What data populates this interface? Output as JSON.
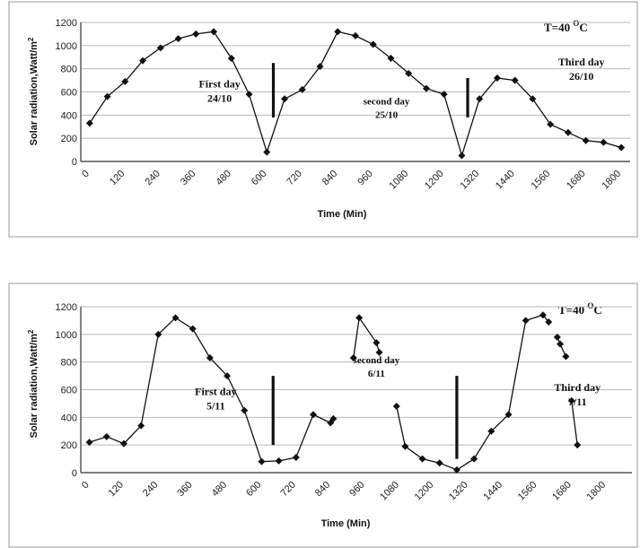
{
  "chart_data": [
    {
      "type": "line",
      "title": "T=40 °C",
      "title_main": "T=40 ",
      "title_sup": "O",
      "title_unit": "C",
      "xlabel": "Time (Min)",
      "ylabel": "Solar radiation,Watt/m",
      "ylabel_sup": "2",
      "ylim": [
        0,
        1200
      ],
      "xlim": [
        -30,
        1830
      ],
      "yticks": [
        0,
        200,
        400,
        600,
        800,
        1000,
        1200
      ],
      "xticks": [
        0,
        120,
        240,
        360,
        480,
        600,
        720,
        840,
        960,
        1080,
        1200,
        1320,
        1440,
        1560,
        1680,
        1800
      ],
      "grid": true,
      "series": [
        {
          "segments": [
            [
              [
                0,
                330
              ],
              [
                60,
                560
              ],
              [
                120,
                690
              ],
              [
                180,
                870
              ],
              [
                240,
                980
              ],
              [
                300,
                1060
              ],
              [
                360,
                1100
              ],
              [
                420,
                1120
              ],
              [
                480,
                890
              ],
              [
                540,
                580
              ],
              [
                600,
                80
              ],
              [
                660,
                540
              ],
              [
                720,
                620
              ],
              [
                780,
                820
              ],
              [
                840,
                1120
              ],
              [
                900,
                1085
              ],
              [
                960,
                1010
              ],
              [
                1020,
                890
              ],
              [
                1080,
                760
              ],
              [
                1140,
                630
              ],
              [
                1200,
                580
              ],
              [
                1260,
                50
              ],
              [
                1320,
                540
              ],
              [
                1380,
                720
              ],
              [
                1440,
                700
              ],
              [
                1500,
                540
              ],
              [
                1560,
                320
              ],
              [
                1620,
                250
              ],
              [
                1680,
                180
              ],
              [
                1740,
                165
              ],
              [
                1800,
                120
              ]
            ]
          ]
        }
      ],
      "dividers": [
        {
          "x": 622,
          "y_from": 380,
          "y_to": 850
        },
        {
          "x": 1280,
          "y_from": 380,
          "y_to": 720
        }
      ],
      "annotations": [
        {
          "lines": [
            "First day",
            "24/10"
          ],
          "x": 440,
          "y": 640,
          "size": 12
        },
        {
          "lines": [
            "second day",
            "25/10"
          ],
          "x": 1005,
          "y": 490,
          "size": 11
        },
        {
          "lines": [
            "Third day",
            "26/10"
          ],
          "x": 1665,
          "y": 830,
          "size": 12
        }
      ]
    },
    {
      "type": "line",
      "title": "T=40 °C",
      "title_main": "T=40 ",
      "title_sup": "O",
      "title_unit": "C",
      "xlabel": "Time (Min)",
      "ylabel": "Solar radiation,Watt/m",
      "ylabel_sup": "2",
      "ylim": [
        0,
        1200
      ],
      "xlim": [
        -30,
        1890
      ],
      "yticks": [
        0,
        200,
        400,
        600,
        800,
        1000,
        1200
      ],
      "xticks": [
        0,
        120,
        240,
        360,
        480,
        600,
        720,
        840,
        960,
        1080,
        1200,
        1320,
        1440,
        1560,
        1680,
        1800
      ],
      "grid": true,
      "series": [
        {
          "segments": [
            [
              [
                0,
                220
              ],
              [
                60,
                260
              ],
              [
                120,
                210
              ],
              [
                180,
                340
              ],
              [
                240,
                1000
              ],
              [
                300,
                1120
              ],
              [
                360,
                1040
              ],
              [
                420,
                830
              ],
              [
                480,
                700
              ],
              [
                540,
                450
              ],
              [
                600,
                80
              ],
              [
                660,
                85
              ],
              [
                720,
                110
              ],
              [
                780,
                420
              ],
              [
                840,
                360
              ],
              [
                850,
                390
              ]
            ],
            [
              [
                920,
                830
              ],
              [
                940,
                1120
              ],
              [
                1000,
                940
              ],
              [
                1010,
                870
              ]
            ],
            [
              [
                1070,
                480
              ],
              [
                1100,
                190
              ],
              [
                1160,
                100
              ],
              [
                1220,
                70
              ],
              [
                1280,
                20
              ],
              [
                1340,
                100
              ],
              [
                1400,
                300
              ],
              [
                1460,
                420
              ],
              [
                1520,
                1100
              ],
              [
                1580,
                1140
              ],
              [
                1600,
                1090
              ]
            ],
            [
              [
                1630,
                980
              ],
              [
                1640,
                930
              ],
              [
                1660,
                840
              ]
            ],
            [
              [
                1680,
                520
              ],
              [
                1700,
                200
              ]
            ]
          ]
        }
      ],
      "dividers": [
        {
          "x": 640,
          "y_from": 200,
          "y_to": 700
        },
        {
          "x": 1280,
          "y_from": 100,
          "y_to": 700
        }
      ],
      "annotations": [
        {
          "lines": [
            "First day",
            "5/11"
          ],
          "x": 440,
          "y": 560,
          "size": 12
        },
        {
          "lines": [
            "second day",
            "6/11"
          ],
          "x": 1000,
          "y": 790,
          "size": 11
        },
        {
          "lines": [
            "Third day",
            "7/11"
          ],
          "x": 1700,
          "y": 590,
          "size": 12
        }
      ]
    }
  ]
}
